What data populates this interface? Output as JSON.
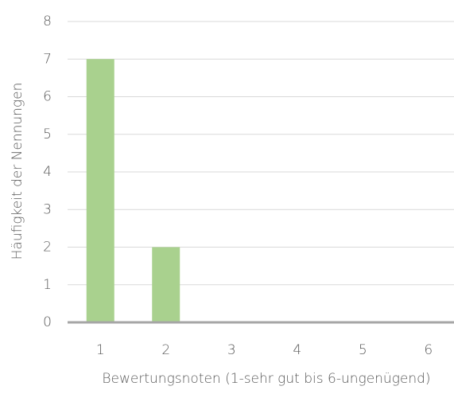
{
  "chart_data": {
    "type": "bar",
    "x_label": "Bewertungsnoten (1-sehr gut bis 6-ungenügend)",
    "y_label": "Häufigkeit der Nennungen",
    "categories": [
      "1",
      "2",
      "3",
      "4",
      "5",
      "6"
    ],
    "values": [
      7,
      2,
      0,
      0,
      0,
      0
    ],
    "color": "#a9d18e",
    "ylim": [
      0,
      8
    ],
    "yticks": [
      0,
      1,
      2,
      3,
      4,
      5,
      6,
      7,
      8
    ],
    "grid": true
  }
}
